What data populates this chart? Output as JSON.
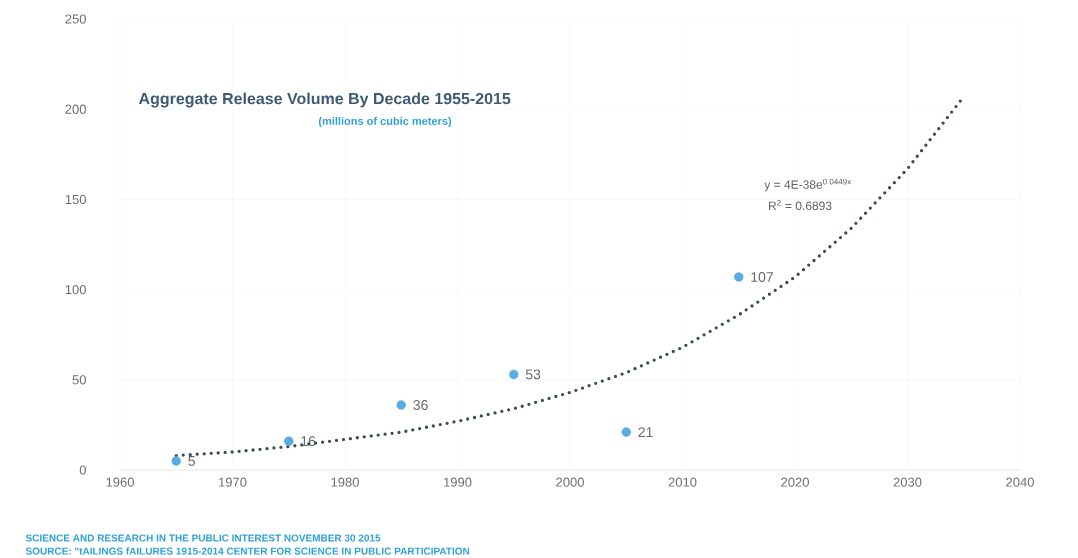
{
  "chart_data": {
    "type": "scatter",
    "title": "Aggregate Release Volume By Decade 1955-2015",
    "subtitle": "(millions of cubic meters)",
    "annotations": [
      "y = 4E-38e$^{0.0449x}$",
      "R$^{2}$ = 0.6893",
      "SCIENCE AND RESEARCH IN THE PUBLIC INTEREST NOVEMBER 30 2015",
      "SOURCE: \"tAILINGS fAILURES 1915-2014  CENTER FOR SCIENCE IN PUBLIC PARTICIPATION"
    ],
    "series": [
      {
        "color": "#5aace0",
        "marker": "circle",
        "x": [
          1965,
          1975,
          1985,
          1995,
          2005,
          2015
        ],
        "values": [
          5,
          16,
          36,
          53,
          21,
          107
        ],
        "value_labels": [
          "5",
          "16",
          "36",
          "53",
          "21",
          "107"
        ]
      },
      {
        "type": "line",
        "color": "#3e4b5e",
        "line_style": "dotted",
        "marker": "none",
        "x": [
          1965,
          1970,
          1975,
          1980,
          1985,
          1990,
          1995,
          2000,
          2005,
          2010,
          2015,
          2020,
          2025,
          2030,
          2035
        ],
        "values": [
          8,
          10,
          13,
          17,
          21,
          27,
          34,
          43,
          54,
          68,
          86,
          107,
          134,
          167,
          207
        ]
      }
    ],
    "xlim": [
      1960,
      2040
    ],
    "xticks": [
      1960,
      1970,
      1980,
      1990,
      2000,
      2010,
      2020,
      2030,
      2040
    ],
    "ylim": [
      0,
      250
    ],
    "yticks": [
      0,
      50,
      100,
      150,
      200,
      250
    ],
    "grid": true
  }
}
